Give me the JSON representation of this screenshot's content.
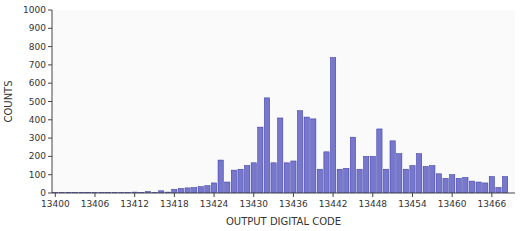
{
  "chart_data": {
    "type": "bar",
    "xlabel": "OUTPUT DIGITAL CODE",
    "ylabel": "COUNTS",
    "color": "#7777cc",
    "grid": false,
    "xlim": [
      13399.5,
      13469.5
    ],
    "ylim": [
      0,
      1000
    ],
    "yticks": [
      0,
      100,
      200,
      300,
      400,
      500,
      600,
      700,
      800,
      900,
      1000
    ],
    "xticks": [
      13400,
      13406,
      13412,
      13418,
      13424,
      13430,
      13436,
      13442,
      13448,
      13454,
      13460,
      13466
    ],
    "x": [
      13400,
      13401,
      13402,
      13403,
      13404,
      13405,
      13406,
      13407,
      13408,
      13409,
      13410,
      13411,
      13412,
      13413,
      13414,
      13415,
      13416,
      13417,
      13418,
      13419,
      13420,
      13421,
      13422,
      13423,
      13424,
      13425,
      13426,
      13427,
      13428,
      13429,
      13430,
      13431,
      13432,
      13433,
      13434,
      13435,
      13436,
      13437,
      13438,
      13439,
      13440,
      13441,
      13442,
      13443,
      13444,
      13445,
      13446,
      13447,
      13448,
      13449,
      13450,
      13451,
      13452,
      13453,
      13454,
      13455,
      13456,
      13457,
      13458,
      13459,
      13460,
      13461,
      13462,
      13463,
      13464,
      13465,
      13466,
      13467,
      13468
    ],
    "values": [
      2,
      2,
      3,
      2,
      2,
      3,
      2,
      2,
      2,
      2,
      2,
      2,
      5,
      2,
      8,
      2,
      12,
      5,
      20,
      25,
      28,
      30,
      35,
      40,
      55,
      180,
      60,
      125,
      130,
      150,
      165,
      360,
      520,
      165,
      410,
      165,
      175,
      450,
      415,
      405,
      130,
      225,
      740,
      130,
      135,
      305,
      130,
      200,
      200,
      350,
      130,
      285,
      215,
      130,
      150,
      215,
      145,
      150,
      105,
      80,
      100,
      80,
      85,
      65,
      60,
      55,
      90,
      30,
      90
    ]
  }
}
